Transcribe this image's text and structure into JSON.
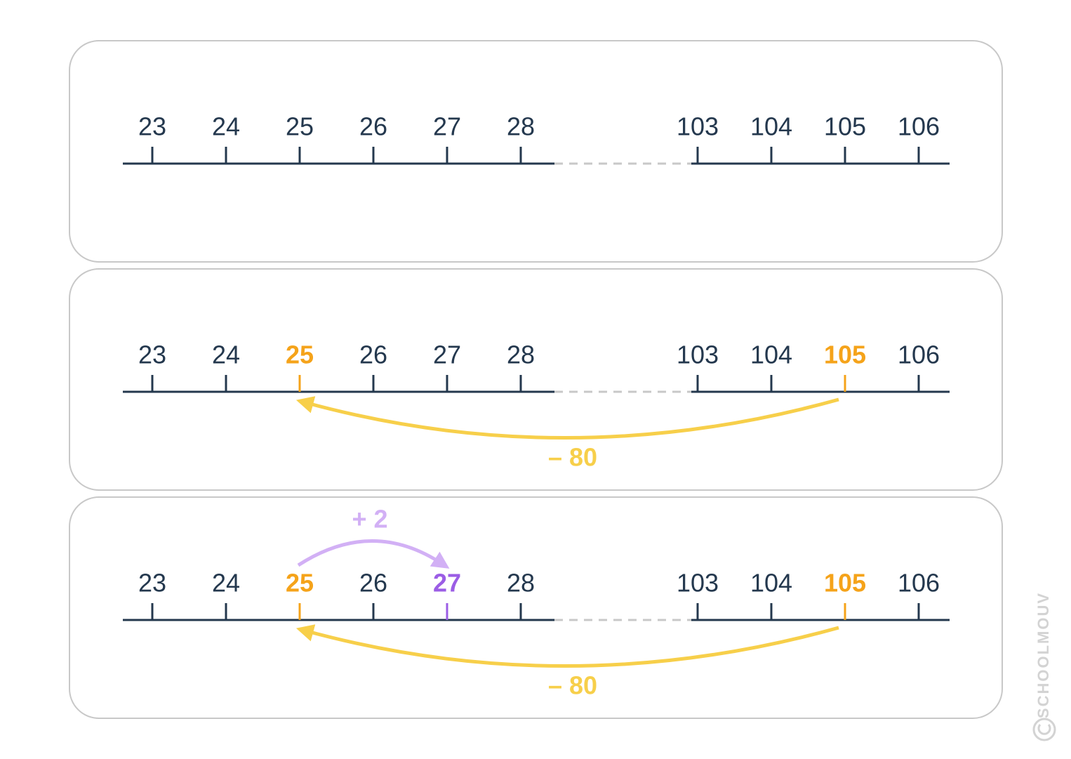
{
  "panels": [
    {
      "labels": [
        23,
        24,
        25,
        26,
        27,
        28,
        103,
        104,
        105,
        106
      ]
    },
    {
      "labels": [
        23,
        24,
        25,
        26,
        27,
        28,
        103,
        104,
        105,
        106
      ],
      "arrows": [
        {
          "label": "– 80"
        }
      ]
    },
    {
      "labels": [
        23,
        24,
        25,
        26,
        27,
        28,
        103,
        104,
        105,
        106
      ],
      "arrows": [
        {
          "label": "– 80"
        },
        {
          "label": "+ 2"
        }
      ]
    }
  ],
  "watermark": "SCHOOLMOUV"
}
